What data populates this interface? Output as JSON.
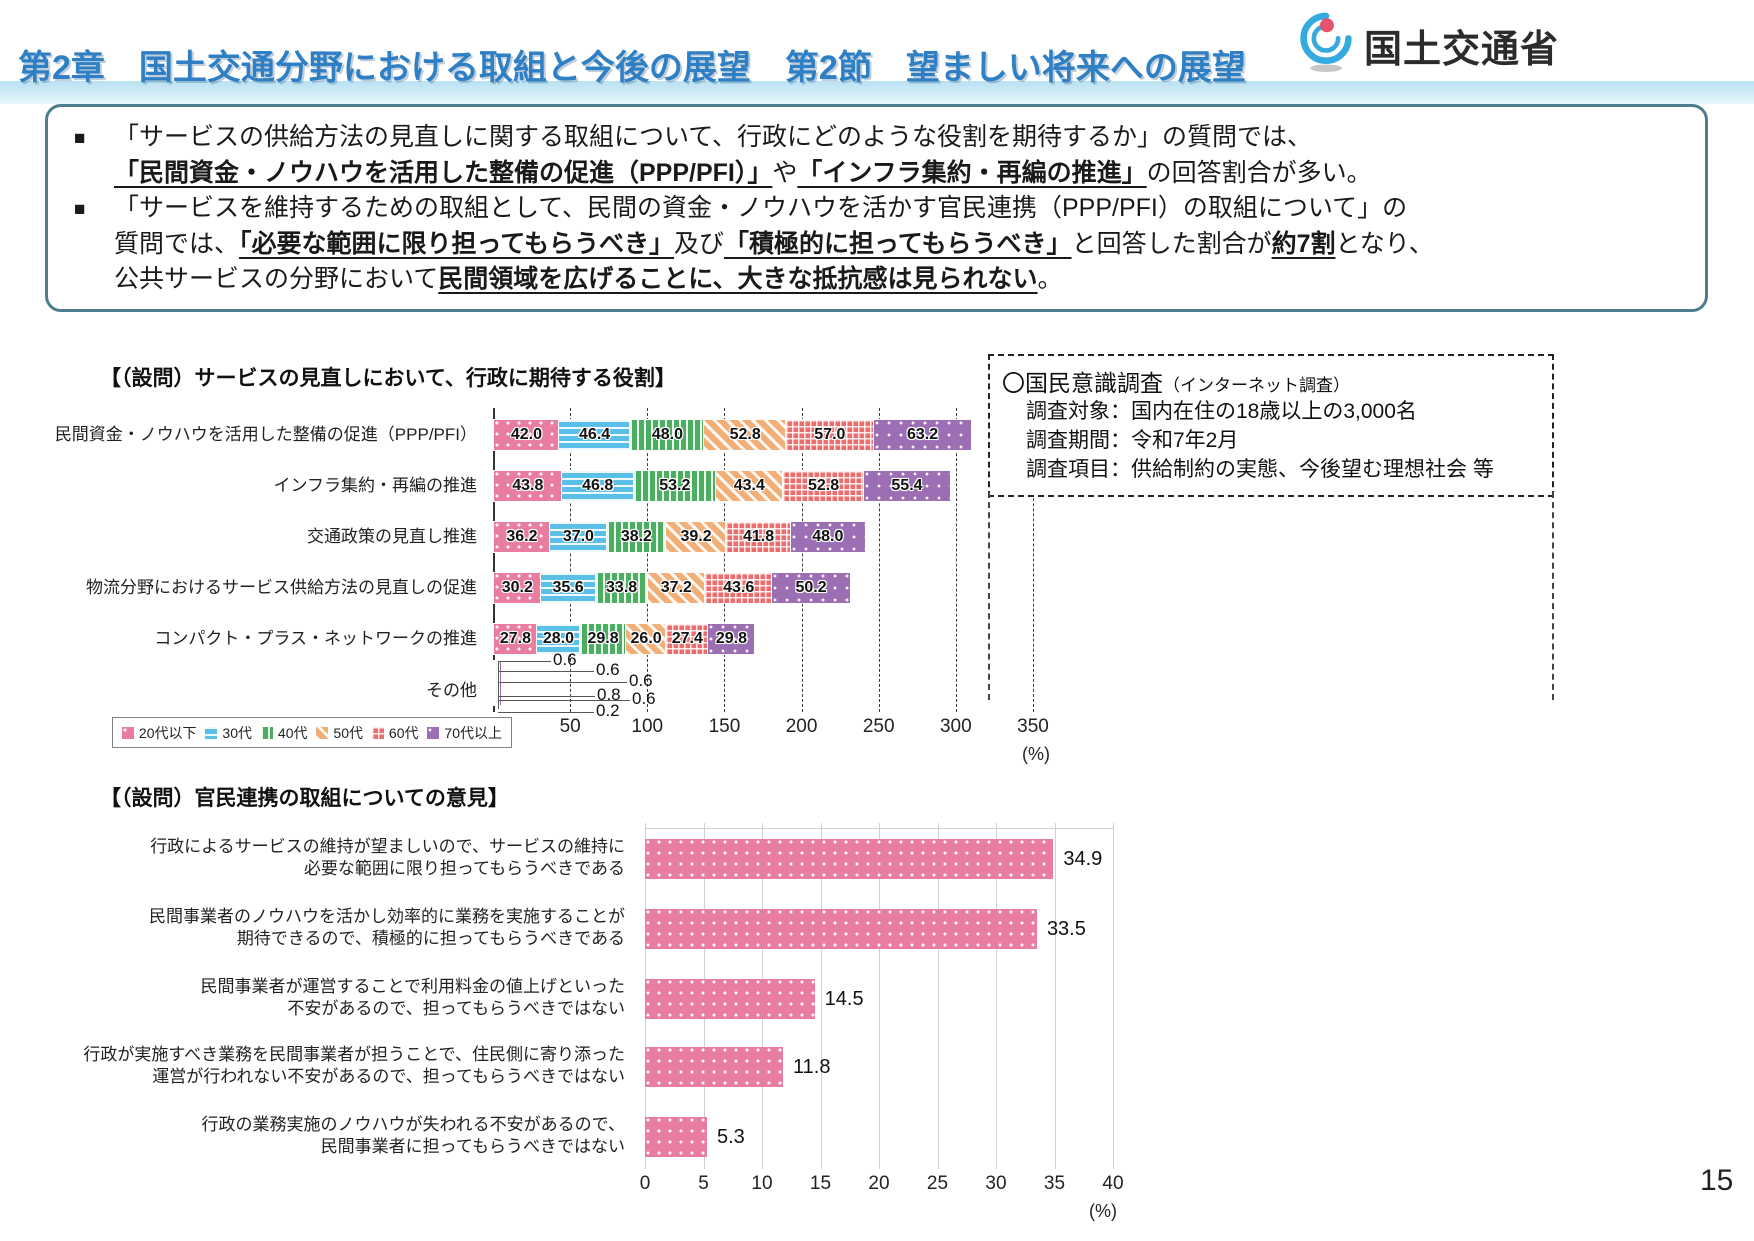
{
  "page_number": "15",
  "header": {
    "title": "第2章　国土交通分野における取組と今後の展望　第2節　望ましい将来への展望",
    "logo_text": "国土交通省",
    "title_color": "#2e7fc4",
    "band_color": "#c3e5f4"
  },
  "summary": {
    "marker": "■",
    "bullets": [
      {
        "runs": [
          {
            "t": "「サービスの供給方法の見直しに関する取組について、行政にどのような役割を期待するか」の質問では、\n",
            "em": false
          },
          {
            "t": "「民間資金・ノウハウを活用した整備の促進（PPP/PFI）」",
            "em": true
          },
          {
            "t": "や",
            "em": false
          },
          {
            "t": "「インフラ集約・再編の推進」",
            "em": true
          },
          {
            "t": "の回答割合が多い。",
            "em": false
          }
        ]
      },
      {
        "runs": [
          {
            "t": "「サービスを維持するための取組として、民間の資金・ノウハウを活かす官民連携（PPP/PFI）の取組について」の\n質問では、",
            "em": false
          },
          {
            "t": "「必要な範囲に限り担ってもらうべき」",
            "em": true
          },
          {
            "t": "及び",
            "em": false
          },
          {
            "t": "「積極的に担ってもらうべき」",
            "em": true
          },
          {
            "t": "と回答した割合が",
            "em": false
          },
          {
            "t": "約7割",
            "em": true
          },
          {
            "t": "となり、\n公共サービスの分野において",
            "em": false
          },
          {
            "t": "民間領域を広げることに、大きな抵抗感は見られない",
            "em": true
          },
          {
            "t": "。",
            "em": false
          }
        ]
      }
    ]
  },
  "survey_info": {
    "title": "〇国民意識調査",
    "title_note": "（インターネット調査）",
    "lines": [
      "調査対象：国内在住の18歳以上の3,000名",
      "調査期間：令和7年2月",
      "調査項目：供給制約の実態、今後望む理想社会 等"
    ]
  },
  "chart_data": [
    {
      "type": "bar",
      "orientation": "horizontal-stacked",
      "title": "【（設問）サービスの見直しにおいて、行政に期待する役割】",
      "categories": [
        "民間資金・ノウハウを活用した整備の促進（PPP/PFI）",
        "インフラ集約・再編の推進",
        "交通政策の見直し推進",
        "物流分野におけるサービス供給方法の見直しの促進",
        "コンパクト・プラス・ネットワークの推進",
        "その他"
      ],
      "series": [
        {
          "name": "20代以下",
          "color": "#e97ca1",
          "pattern": "dots",
          "values": [
            42.0,
            43.8,
            36.2,
            30.2,
            27.8,
            0.6
          ]
        },
        {
          "name": "30代",
          "color": "#5bc0e8",
          "pattern": "horizontal-stripes",
          "values": [
            46.4,
            46.8,
            37.0,
            35.6,
            28.0,
            0.6
          ]
        },
        {
          "name": "40代",
          "color": "#4bae61",
          "pattern": "vertical-stripes",
          "values": [
            48.0,
            53.2,
            38.2,
            33.8,
            29.8,
            0.6
          ]
        },
        {
          "name": "50代",
          "color": "#f2ae77",
          "pattern": "diagonal-stripes",
          "values": [
            52.8,
            43.4,
            39.2,
            37.2,
            26.0,
            0.8
          ]
        },
        {
          "name": "60代",
          "color": "#ec6d6d",
          "pattern": "crosshatch",
          "values": [
            57.0,
            52.8,
            41.8,
            43.6,
            27.4,
            0.6
          ]
        },
        {
          "name": "70代以上",
          "color": "#9c6fb5",
          "pattern": "dots",
          "values": [
            63.2,
            55.4,
            48.0,
            50.2,
            29.8,
            0.2
          ]
        }
      ],
      "xlim": [
        0,
        350
      ],
      "xticks": [
        0,
        50,
        100,
        150,
        200,
        250,
        300,
        350
      ],
      "x_unit": "(%)",
      "grid": "dashed-vertical",
      "legend_position": "bottom-left"
    },
    {
      "type": "bar",
      "orientation": "horizontal",
      "title": "【（設問）官民連携の取組についての意見】",
      "categories": [
        "行政によるサービスの維持が望ましいので、サービスの維持に\n必要な範囲に限り担ってもらうべきである",
        "民間事業者のノウハウを活かし効率的に業務を実施することが\n期待できるので、積極的に担ってもらうべきである",
        "民間事業者が運営することで利用料金の値上げといった\n不安があるので、担ってもらうべきではない",
        "行政が実施すべき業務を民間事業者が担うことで、住民側に寄り添った\n運営が行われない不安があるので、担ってもらうべきではない",
        "行政の業務実施のノウハウが失われる不安があるので、\n民間事業者に担ってもらうべきではない"
      ],
      "values": [
        34.9,
        33.5,
        14.5,
        11.8,
        5.3
      ],
      "bar_color": "#e97ca1",
      "pattern": "dots",
      "xlim": [
        0,
        40
      ],
      "xticks": [
        0,
        5,
        10,
        15,
        20,
        25,
        30,
        35,
        40
      ],
      "x_unit": "(%)",
      "grid": "solid-vertical"
    }
  ]
}
